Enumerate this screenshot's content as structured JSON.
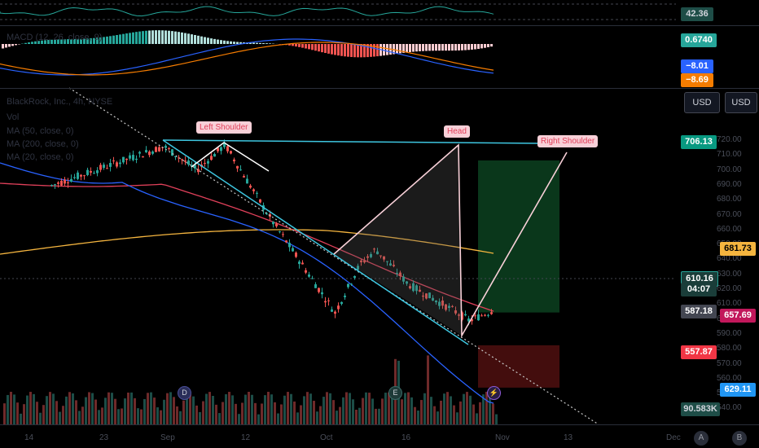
{
  "symbol": {
    "name": "BlackRock, Inc.",
    "interval": "4h",
    "exchange": "NYSE",
    "title_line": "BlackRock, Inc., 4h, NYSE",
    "vol_label": "Vol"
  },
  "indicators": {
    "rsi_value": "42.36",
    "macd_label": "MACD (12, 26, close, 9)",
    "macd_value": "0.6740",
    "macd_signal_value": "−8.01",
    "macd_line_value": "−8.69",
    "ma1_label": "MA (50, close, 0)",
    "ma2_label": "MA (200, close, 0)",
    "ma3_label": "MA (20, close, 0)"
  },
  "currency_buttons": [
    "USD",
    "USD"
  ],
  "price_axis": {
    "ticks": [
      "720.00",
      "710.00",
      "700.00",
      "690.00",
      "680.00",
      "670.00",
      "660.00",
      "650.00",
      "640.00",
      "630.00",
      "620.00",
      "610.00",
      "600.00",
      "590.00",
      "580.00",
      "570.00",
      "560.00",
      "550.00",
      "540.00"
    ]
  },
  "price_tags": {
    "target": "706.13",
    "ma200": "681.73",
    "last_price": "610.16",
    "countdown": "04:07",
    "ma20": "587.18",
    "ma50": "657.69",
    "stop": "557.87",
    "ma_blue": "629.11",
    "volume": "90.583K"
  },
  "colors": {
    "up": "#26a69a",
    "down": "#ef5350",
    "ma200": "#f5b53f",
    "ma50": "#e0405a",
    "ma20": "#2962ff",
    "target": "#089981",
    "stop": "#f23645"
  },
  "pattern_labels": {
    "left_shoulder": "Left Shoulder",
    "head": "Head",
    "right_shoulder": "Right Shoulder"
  },
  "time_axis": [
    "14",
    "23",
    "Sep",
    "12",
    "Oct",
    "16",
    "Nov",
    "13",
    "Dec"
  ],
  "events": [
    "D",
    "E"
  ],
  "bottom_buttons": [
    "A",
    "B"
  ],
  "chart_data": {
    "type": "candlestick",
    "title": "BlackRock, Inc., 4h, NYSE",
    "ylim": [
      540,
      725
    ],
    "x": [
      "14",
      "23",
      "Sep",
      "12",
      "Oct",
      "16",
      "Nov",
      "13",
      "Dec"
    ],
    "last_price": 610.16,
    "series": [
      {
        "name": "MA (200, close, 0)",
        "last": 681.73
      },
      {
        "name": "MA (50, close, 0)",
        "last": 657.69
      },
      {
        "name": "MA (20, close, 0)",
        "last": 587.18
      }
    ],
    "long_position": {
      "target": 706.13,
      "stop": 557.87
    },
    "volume_last": "90.583K"
  }
}
